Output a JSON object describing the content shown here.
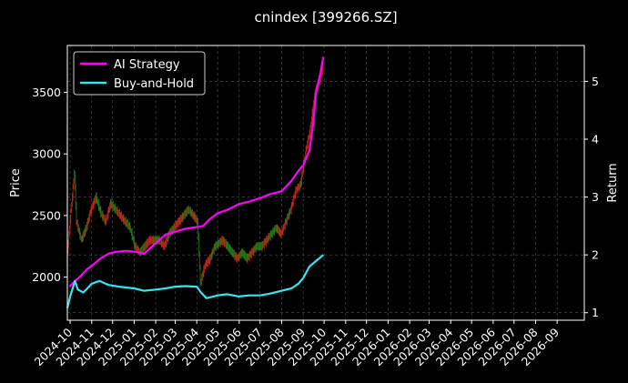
{
  "chart_data": {
    "type": "line",
    "title": "cnindex [399266.SZ]",
    "ylabel_left": "Price",
    "ylabel_right": "Return",
    "x_tick_labels": [
      "2024-10",
      "2024-11",
      "2024-12",
      "2025-01",
      "2025-02",
      "2025-03",
      "2025-04",
      "2025-05",
      "2025-06",
      "2025-07",
      "2025-08",
      "2025-09",
      "2025-10",
      "2025-11",
      "2025-12",
      "2026-01",
      "2026-02",
      "2026-03",
      "2026-04",
      "2026-05",
      "2026-06",
      "2026-07",
      "2026-08",
      "2026-09"
    ],
    "y_left_ticks": [
      2000,
      2500,
      3000,
      3500
    ],
    "y_left_tick_labels": [
      "2000",
      "2500",
      "3000",
      "3500"
    ],
    "y_right_ticks": [
      1,
      2,
      3,
      4,
      5
    ],
    "y_right_tick_labels": [
      "1",
      "2",
      "3",
      "4",
      "5"
    ],
    "ylim_left": [
      1650,
      3880
    ],
    "ylim_right": [
      0.87,
      5.62
    ],
    "xlim": [
      "2024-09-27",
      "2026-10-10"
    ],
    "grid": true,
    "legend_position": "top-left",
    "colors": {
      "background": "#000000",
      "ai_strategy": "#ff00ff",
      "buy_and_hold": "#33e6f0",
      "candle_up": "#d42a1a",
      "candle_down": "#1a8a1a",
      "grid": "#555555"
    },
    "series": [
      {
        "name": "AI Strategy",
        "axis": "right",
        "x": [
          "2024-09-30",
          "2024-10-08",
          "2024-10-15",
          "2024-10-25",
          "2024-11-05",
          "2024-11-15",
          "2024-11-25",
          "2024-12-05",
          "2024-12-20",
          "2025-01-05",
          "2025-01-15",
          "2025-02-01",
          "2025-02-15",
          "2025-03-01",
          "2025-03-15",
          "2025-04-01",
          "2025-04-10",
          "2025-04-20",
          "2025-05-01",
          "2025-05-15",
          "2025-06-01",
          "2025-06-15",
          "2025-07-01",
          "2025-07-15",
          "2025-08-01",
          "2025-08-15",
          "2025-08-25",
          "2025-09-01",
          "2025-09-10",
          "2025-09-15",
          "2025-09-20",
          "2025-09-25",
          "2025-09-30"
        ],
        "values": [
          1.45,
          1.55,
          1.62,
          1.75,
          1.85,
          1.95,
          2.02,
          2.05,
          2.07,
          2.05,
          2.02,
          2.2,
          2.35,
          2.4,
          2.45,
          2.48,
          2.5,
          2.62,
          2.72,
          2.78,
          2.88,
          2.92,
          2.98,
          3.05,
          3.1,
          3.28,
          3.45,
          3.55,
          3.8,
          4.25,
          4.85,
          5.1,
          5.42
        ]
      },
      {
        "name": "Buy-and-Hold",
        "axis": "right",
        "x": [
          "2024-09-27",
          "2024-10-01",
          "2024-10-08",
          "2024-10-12",
          "2024-10-20",
          "2024-11-01",
          "2024-11-12",
          "2024-11-25",
          "2024-12-10",
          "2025-01-01",
          "2025-01-15",
          "2025-02-01",
          "2025-02-15",
          "2025-03-01",
          "2025-03-15",
          "2025-04-01",
          "2025-04-07",
          "2025-04-15",
          "2025-05-01",
          "2025-05-15",
          "2025-06-01",
          "2025-06-15",
          "2025-07-01",
          "2025-07-15",
          "2025-08-01",
          "2025-08-15",
          "2025-08-25",
          "2025-09-01",
          "2025-09-10",
          "2025-09-20",
          "2025-09-30"
        ],
        "values": [
          1.08,
          1.28,
          1.55,
          1.4,
          1.35,
          1.5,
          1.55,
          1.48,
          1.45,
          1.42,
          1.38,
          1.4,
          1.42,
          1.45,
          1.46,
          1.45,
          1.35,
          1.25,
          1.3,
          1.32,
          1.28,
          1.3,
          1.3,
          1.33,
          1.38,
          1.42,
          1.5,
          1.6,
          1.8,
          1.9,
          2.0
        ]
      }
    ],
    "price_close": {
      "axis": "left",
      "x": [
        "2024-09-27",
        "2024-10-08",
        "2024-10-11",
        "2024-10-18",
        "2024-10-25",
        "2024-11-01",
        "2024-11-08",
        "2024-11-15",
        "2024-11-22",
        "2024-11-29",
        "2024-12-06",
        "2024-12-13",
        "2024-12-20",
        "2024-12-27",
        "2025-01-03",
        "2025-01-10",
        "2025-01-17",
        "2025-01-24",
        "2025-02-07",
        "2025-02-14",
        "2025-02-21",
        "2025-02-28",
        "2025-03-07",
        "2025-03-14",
        "2025-03-21",
        "2025-03-28",
        "2025-04-03",
        "2025-04-07",
        "2025-04-14",
        "2025-04-21",
        "2025-04-28",
        "2025-05-09",
        "2025-05-16",
        "2025-05-23",
        "2025-05-30",
        "2025-06-06",
        "2025-06-13",
        "2025-06-20",
        "2025-06-27",
        "2025-07-04",
        "2025-07-11",
        "2025-07-18",
        "2025-07-25",
        "2025-08-01",
        "2025-08-08",
        "2025-08-15",
        "2025-08-22",
        "2025-08-29",
        "2025-09-05",
        "2025-09-12",
        "2025-09-19",
        "2025-09-26",
        "2025-09-30"
      ],
      "values": [
        2150,
        2850,
        2450,
        2300,
        2400,
        2550,
        2650,
        2520,
        2450,
        2600,
        2550,
        2500,
        2450,
        2400,
        2250,
        2200,
        2250,
        2300,
        2300,
        2250,
        2350,
        2400,
        2450,
        2500,
        2550,
        2500,
        2450,
        1950,
        2100,
        2150,
        2250,
        2300,
        2250,
        2200,
        2150,
        2200,
        2150,
        2200,
        2250,
        2250,
        2300,
        2350,
        2400,
        2350,
        2450,
        2550,
        2700,
        2750,
        3000,
        3200,
        3500,
        3600,
        3700
      ]
    }
  }
}
